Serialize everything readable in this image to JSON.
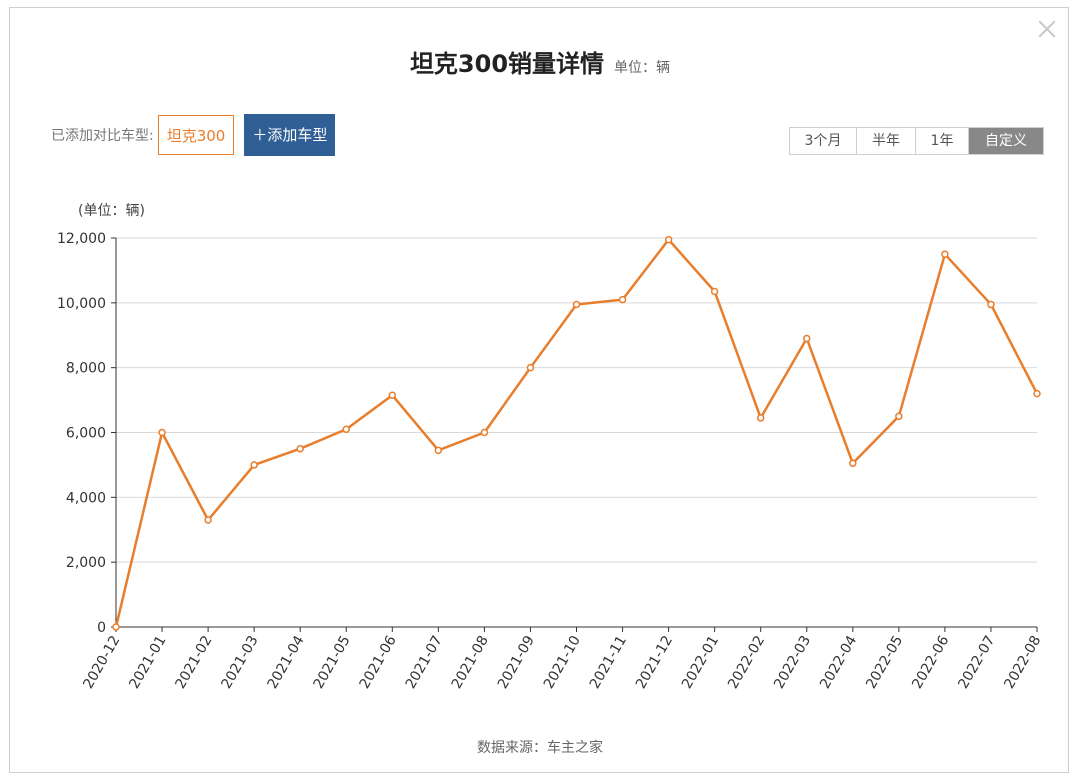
{
  "header": {
    "title": "坦克300销量详情",
    "unit": "单位：辆",
    "close_icon": "close-icon"
  },
  "compare": {
    "label": "已添加对比车型:",
    "model_chip": "坦克300",
    "add_button": "＋添加车型"
  },
  "range_tabs": [
    {
      "label": "3个月",
      "active": false
    },
    {
      "label": "半年",
      "active": false
    },
    {
      "label": "1年",
      "active": false
    },
    {
      "label": "自定义",
      "active": true
    }
  ],
  "colors": {
    "accent": "#e87e2c",
    "button": "#2f5f94",
    "grid": "#d9d9d9",
    "axis": "#333333"
  },
  "chart_data": {
    "type": "line",
    "ylabel": "(单位：辆)",
    "ylim": [
      0,
      12000
    ],
    "yticks": [
      "0",
      "2,000",
      "4,000",
      "6,000",
      "8,000",
      "10,000",
      "12,000"
    ],
    "x": [
      "2020-12",
      "2021-01",
      "2021-02",
      "2021-03",
      "2021-04",
      "2021-05",
      "2021-06",
      "2021-07",
      "2021-08",
      "2021-09",
      "2021-10",
      "2021-11",
      "2021-12",
      "2022-01",
      "2022-02",
      "2022-03",
      "2022-04",
      "2022-05",
      "2022-06",
      "2022-07",
      "2022-08"
    ],
    "series": [
      {
        "values": [
          0,
          6000,
          3300,
          5000,
          5500,
          6100,
          7150,
          5450,
          6000,
          8000,
          9950,
          10100,
          11950,
          10350,
          6450,
          8900,
          5050,
          6500,
          11500,
          9950,
          7200
        ],
        "color": "#e87e2c"
      }
    ],
    "grid": true,
    "legend": "none"
  },
  "footer": {
    "source": "数据来源：车主之家"
  }
}
